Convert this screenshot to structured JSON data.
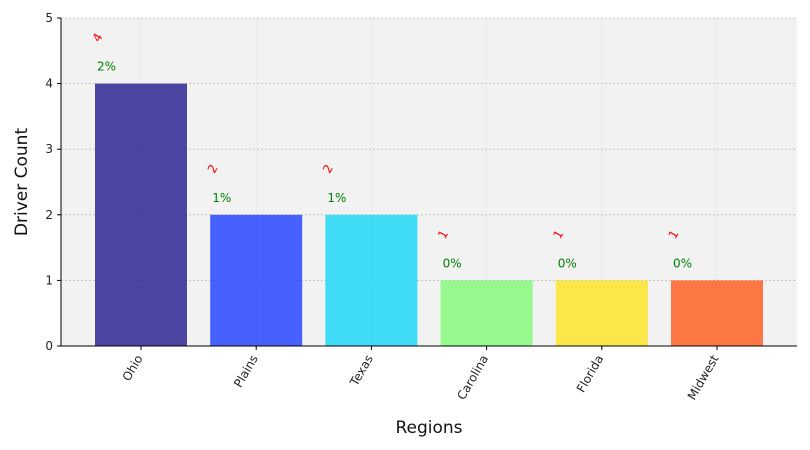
{
  "chart_data": {
    "type": "bar",
    "title": "",
    "xlabel": "Regions",
    "ylabel": "Driver Count",
    "categories": [
      "Ohio",
      "Plains",
      "Texas",
      "Carolina",
      "Florida",
      "Midwest"
    ],
    "values": [
      4,
      2,
      2,
      1,
      1,
      1
    ],
    "count_labels": [
      "4",
      "2",
      "2",
      "1",
      "1",
      "1"
    ],
    "percent_labels": [
      "2%",
      "1%",
      "1%",
      "0%",
      "0%",
      "0%"
    ],
    "bar_colors": [
      "#1f1a8c",
      "#1a3cff",
      "#13d4f7",
      "#7dfa74",
      "#fde31e",
      "#ff5718"
    ],
    "count_label_color": "#ff0000",
    "percent_label_color": "#008000",
    "plot_background": "#f2f2f2",
    "ylim": [
      0,
      5
    ],
    "yticks": [
      0,
      1,
      2,
      3,
      4,
      5
    ],
    "grid": true,
    "legend": "none"
  }
}
